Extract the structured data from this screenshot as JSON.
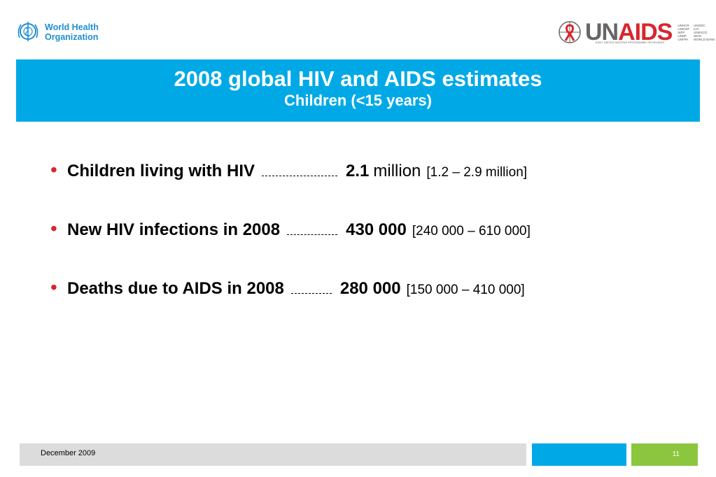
{
  "logos": {
    "who_line1": "World Health",
    "who_line2": "Organization",
    "unaids_un": "UN",
    "unaids_aids": "AIDS",
    "unaids_tagline": "JOINT UNITED NATIONS PROGRAMME ON HIV/AIDS",
    "agencies": [
      "UNHCR",
      "UNODC",
      "UNICEF",
      "ILO",
      "WFP",
      "UNESCO",
      "UNDP",
      "WHO",
      "UNFPA",
      "WORLD BANK"
    ]
  },
  "header": {
    "title": "2008 global HIV and AIDS estimates",
    "subtitle": "Children (<15 years)"
  },
  "bullets": [
    {
      "label": "Children living with HIV",
      "value": "2.1",
      "unit": "million",
      "range": "[1.2 – 2.9 million]"
    },
    {
      "label": "New HIV infections in 2008",
      "value": "430 000",
      "unit": "",
      "range": "[240 000 – 610 000]"
    },
    {
      "label": "Deaths due to AIDS in 2008",
      "value": "280 000",
      "unit": "",
      "range": "[150 000 – 410 000]"
    }
  ],
  "footer": {
    "date": "December 2009",
    "page": "11"
  },
  "colors": {
    "banner": "#00a9e6",
    "bullet": "#d8262e",
    "footer_blue": "#00a9e6",
    "footer_green": "#8cc63f"
  }
}
